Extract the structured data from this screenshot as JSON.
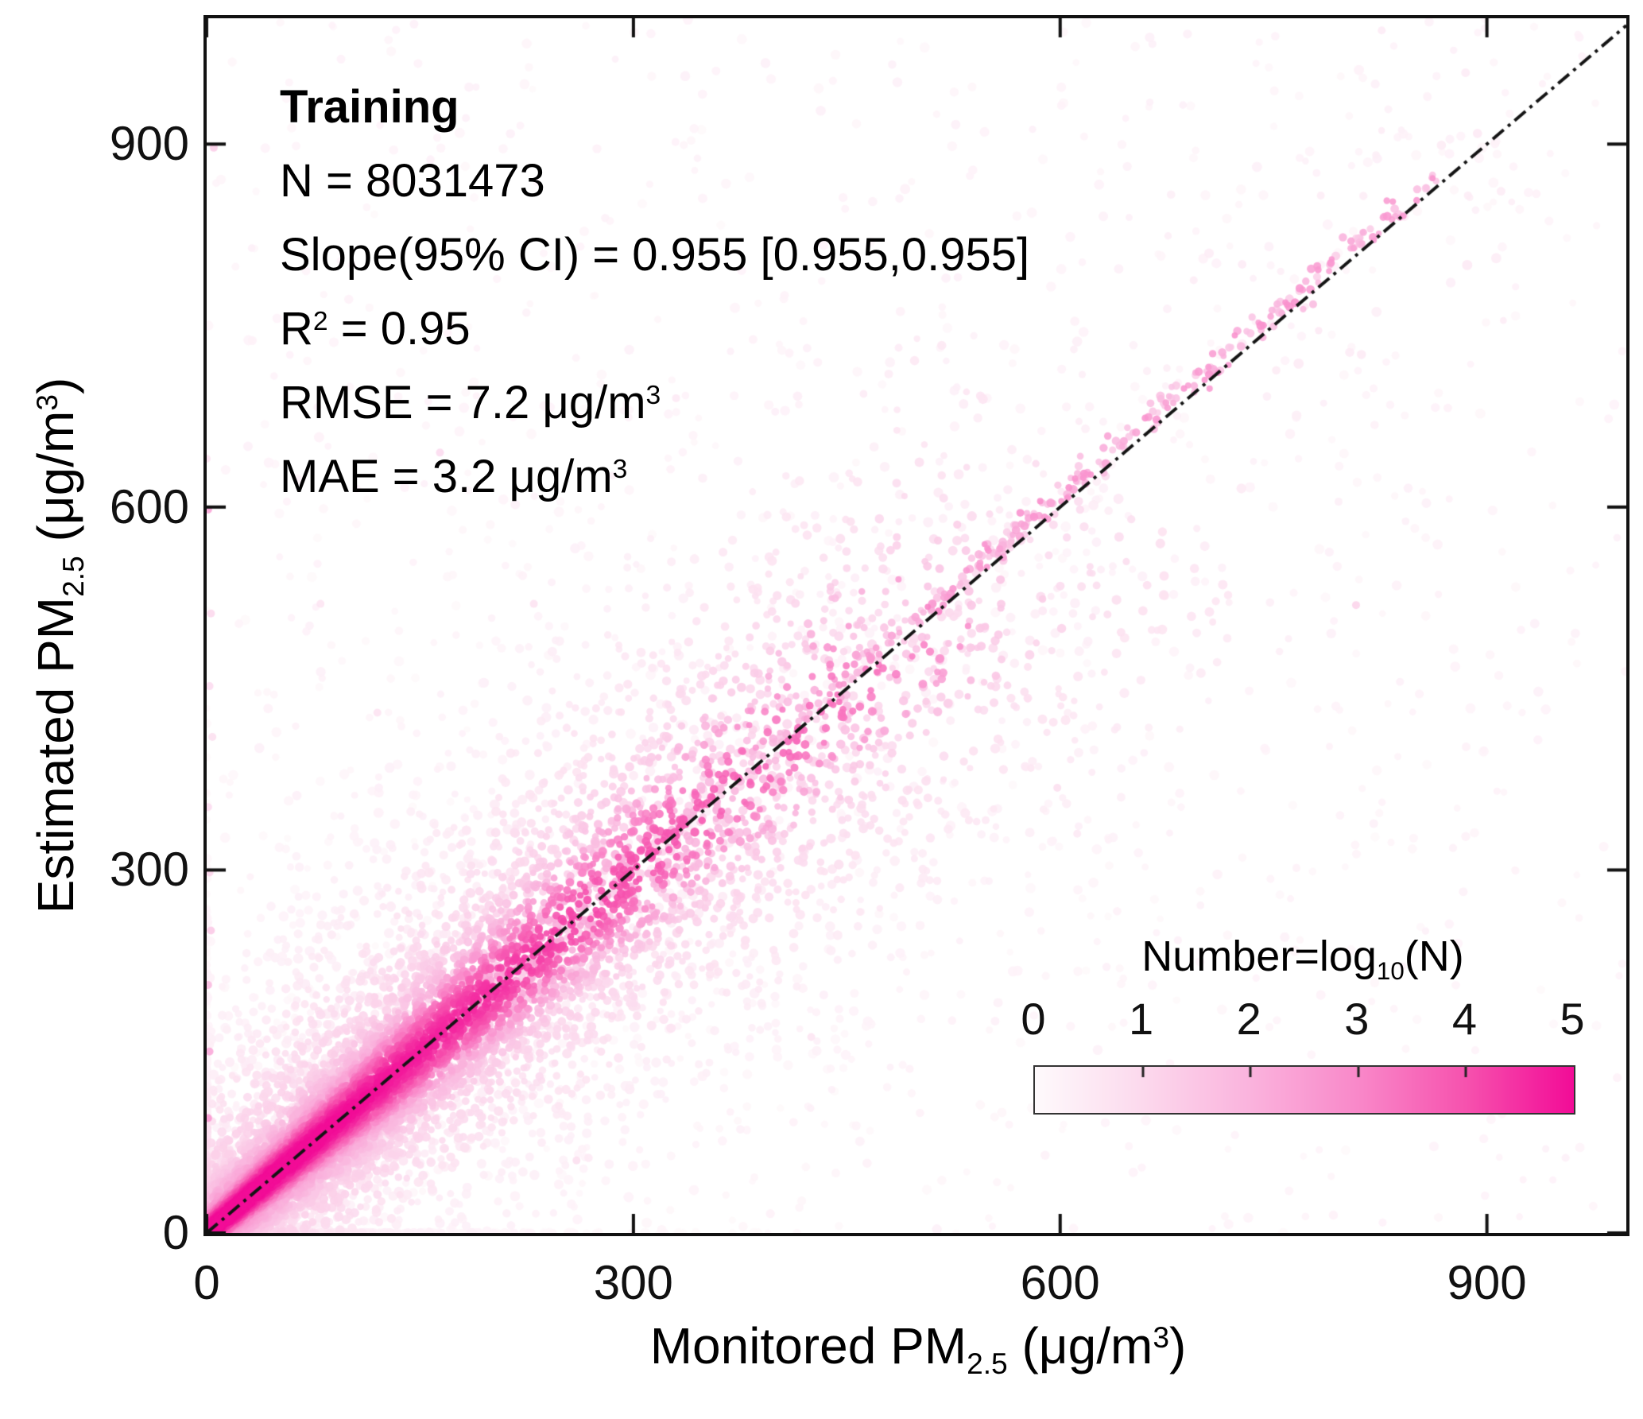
{
  "figure": {
    "background": "#ffffff",
    "axis_color": "#111111",
    "text_color": "#000000"
  },
  "chart_data": {
    "type": "scatter",
    "panel_label": "Training",
    "stats_lines": [
      [
        {
          "t": "Training",
          "bold": true
        }
      ],
      [
        {
          "t": "N = 8031473"
        }
      ],
      [
        {
          "t": "Slope(95% CI) = 0.955 [0.955,0.955]"
        }
      ],
      [
        {
          "t": "R"
        },
        {
          "sup": "2"
        },
        {
          "t": " = 0.95"
        }
      ],
      [
        {
          "t": "RMSE = 7.2 μg/m"
        },
        {
          "sup": "3"
        }
      ],
      [
        {
          "t": "MAE = 3.2 μg/m"
        },
        {
          "sup": "3"
        }
      ]
    ],
    "xlabel_parts": [
      {
        "t": "Monitored PM"
      },
      {
        "sub": "2.5"
      },
      {
        "t": " (μg/m"
      },
      {
        "sup": "3"
      },
      {
        "t": ")"
      }
    ],
    "ylabel_parts": [
      {
        "t": "Estimated PM"
      },
      {
        "sub": "2.5"
      },
      {
        "t": " (μg/m"
      },
      {
        "sup": "3"
      },
      {
        "t": ")"
      }
    ],
    "xlim": [
      0,
      998
    ],
    "ylim": [
      0,
      1004
    ],
    "xticks": [
      0,
      300,
      600,
      900
    ],
    "yticks": [
      0,
      300,
      600,
      900
    ],
    "grid": false,
    "identity_line": {
      "dash": [
        18,
        7,
        4,
        7
      ],
      "width": 4,
      "color": "#141414",
      "from": [
        0,
        0
      ],
      "to": [
        998,
        998
      ]
    },
    "axis_style": {
      "color": "#111111",
      "tick_len": 24,
      "tick_width": 4
    },
    "colorbar": {
      "title_parts": [
        {
          "t": "Number=log"
        },
        {
          "sub": "10"
        },
        {
          "t": "(N)"
        }
      ],
      "ticks": [
        "0",
        "1",
        "2",
        "3",
        "4",
        "5"
      ],
      "vmin": 0,
      "vmax": 5,
      "stops": [
        "#fefafc",
        "#fcd9ed",
        "#fab3dd",
        "#f988c9",
        "#f652ae",
        "#f20c97"
      ]
    },
    "density_model": {
      "seed": 42,
      "point_alpha": 0.9,
      "clusters": [
        {
          "name": "sprinkle",
          "kind": "uniform",
          "n": 850,
          "vMin": 0.08,
          "vMax": 0.28,
          "r": 5.4
        },
        {
          "name": "halo",
          "kind": "diag",
          "n": 1200,
          "tMean": 200,
          "tMax": 640,
          "sigma0": 90,
          "sigmaK": 0.25,
          "vBase": 0.55,
          "vTau": 1500,
          "r": 5.4
        },
        {
          "name": "fringe",
          "kind": "diag",
          "n": 2200,
          "tMean": 240,
          "tMax": 630,
          "sigma0": 45,
          "sigmaK": 0.16,
          "vBase": 1.7,
          "vTau": 900,
          "r": 5.2
        },
        {
          "name": "mid",
          "kind": "diag",
          "n": 3000,
          "tMean": 170,
          "tMax": 560,
          "sigma0": 18,
          "sigmaK": 0.13,
          "vBase": 3.2,
          "vTau": 700,
          "r": 5.0
        },
        {
          "name": "core",
          "kind": "diag",
          "n": 5200,
          "tMean": 110,
          "tMax": 520,
          "sigma0": 8,
          "sigmaK": 0.09,
          "vBase": 5.6,
          "vTau": 900,
          "r": 4.8
        },
        {
          "name": "hi-sparse",
          "kind": "band",
          "n": 260,
          "tMin": 250,
          "tMax": 920,
          "sigma": 80,
          "dOffset": 0,
          "vMin": 0.1,
          "vMax": 0.5,
          "r": 5.4
        },
        {
          "name": "trail",
          "kind": "band",
          "n": 300,
          "tMin": 380,
          "tMax": 868,
          "sigma": 6,
          "dOffset": 10,
          "vMin": 1.2,
          "vMax": 2.8,
          "r": 4.6
        }
      ],
      "outliers": [
        [
          1,
          95,
          2.6
        ],
        [
          2,
          150,
          2.2
        ],
        [
          1,
          205,
          1.8
        ],
        [
          3,
          250,
          1.4
        ],
        [
          2,
          298,
          1.1
        ],
        [
          1,
          352,
          0.9
        ],
        [
          4,
          410,
          0.8
        ],
        [
          2,
          452,
          0.9
        ],
        [
          3,
          512,
          1.0
        ],
        [
          1,
          598,
          2.3
        ],
        [
          0,
          640,
          0.7
        ],
        [
          5,
          897,
          1.3
        ],
        [
          164,
          645,
          0.9
        ],
        [
          808,
          519,
          1.1
        ],
        [
          598,
          368,
          0.8
        ],
        [
          230,
          520,
          0.7
        ],
        [
          420,
          585,
          0.6
        ],
        [
          640,
          418,
          0.5
        ],
        [
          260,
          60,
          0.8
        ],
        [
          425,
          162,
          0.6
        ],
        [
          612,
          330,
          0.5
        ],
        [
          330,
          690,
          0.5
        ],
        [
          120,
          430,
          0.7
        ],
        [
          80,
          520,
          0.6
        ]
      ]
    }
  }
}
